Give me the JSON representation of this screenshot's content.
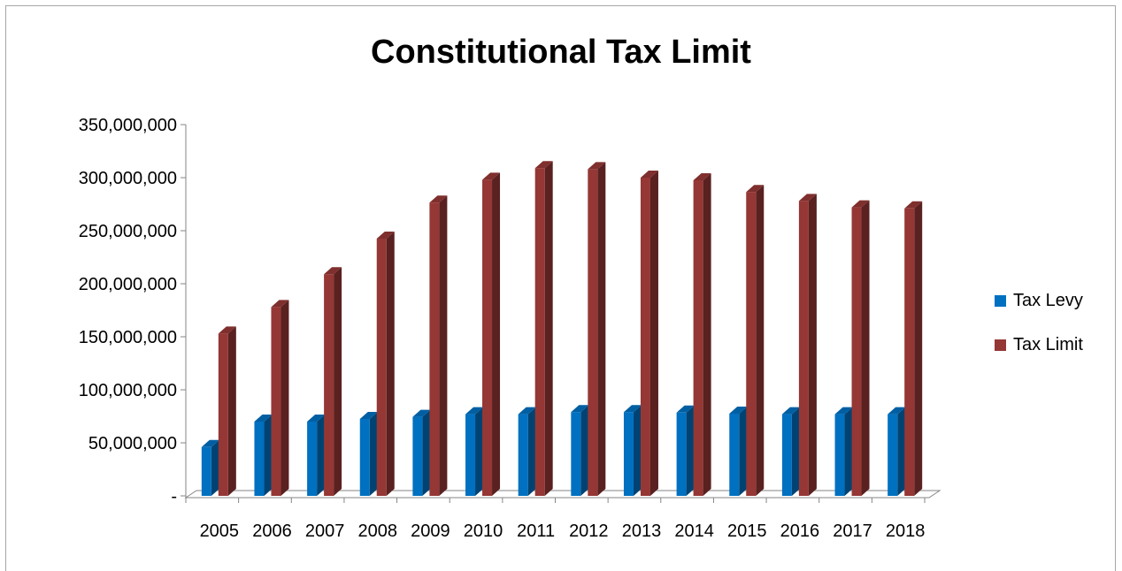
{
  "chart_data": {
    "type": "bar",
    "title": "Constitutional Tax Limit",
    "xlabel": "",
    "ylabel": "",
    "categories": [
      "2005",
      "2006",
      "2007",
      "2008",
      "2009",
      "2010",
      "2011",
      "2012",
      "2013",
      "2014",
      "2015",
      "2016",
      "2017",
      "2018"
    ],
    "series": [
      {
        "name": "Tax Levy",
        "color": "#0070c0",
        "values": [
          46000000,
          70000000,
          70000000,
          72500000,
          74500000,
          77000000,
          77000000,
          79000000,
          79000000,
          78500000,
          77500000,
          77000000,
          77000000,
          77000000
        ]
      },
      {
        "name": "Tax Limit",
        "color": "#953735",
        "values": [
          153000000,
          178000000,
          209000000,
          242500000,
          276500000,
          298000000,
          309000000,
          308000000,
          300000000,
          297500000,
          286500000,
          278000000,
          272000000,
          271000000
        ]
      }
    ],
    "ylim": [
      0,
      350000000
    ],
    "y_ticks": [
      {
        "value": 0,
        "label": "-"
      },
      {
        "value": 50000000,
        "label": "50,000,000"
      },
      {
        "value": 100000000,
        "label": "100,000,000"
      },
      {
        "value": 150000000,
        "label": "150,000,000"
      },
      {
        "value": 200000000,
        "label": "200,000,000"
      },
      {
        "value": 250000000,
        "label": "250,000,000"
      },
      {
        "value": 300000000,
        "label": "300,000,000"
      },
      {
        "value": 350000000,
        "label": "350,000,000"
      }
    ],
    "grid": false,
    "legend_position": "right",
    "style": "3d-column"
  }
}
